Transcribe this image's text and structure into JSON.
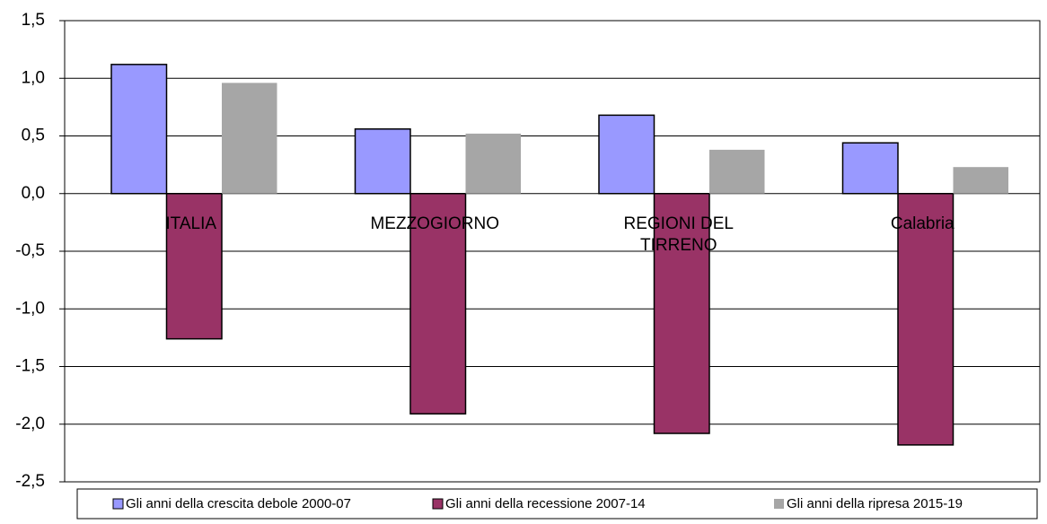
{
  "chart_data": {
    "type": "bar",
    "categories": [
      "ITALIA",
      "MEZZOGIORNO",
      "REGIONI DEL TIRRENO",
      "Calabria"
    ],
    "series": [
      {
        "name": "Gli anni della crescita debole 2000-07",
        "color": "#9999ff",
        "values": [
          1.12,
          0.56,
          0.68,
          0.44
        ]
      },
      {
        "name": "Gli anni della recessione 2007-14",
        "color": "#993366",
        "values": [
          -1.26,
          -1.91,
          -2.08,
          -2.18
        ]
      },
      {
        "name": "Gli anni della ripresa 2015-19",
        "color": "#a6a6a6",
        "values": [
          0.96,
          0.52,
          0.38,
          0.23
        ]
      }
    ],
    "ylim": [
      -2.5,
      1.5
    ],
    "yticks": [
      {
        "value": -2.5,
        "label": "-2,5"
      },
      {
        "value": -2.0,
        "label": "-2,0"
      },
      {
        "value": -1.5,
        "label": "-1,5"
      },
      {
        "value": -1.0,
        "label": "-1,0"
      },
      {
        "value": -0.5,
        "label": "-0,5"
      },
      {
        "value": 0,
        "label": "0,0"
      },
      {
        "value": 0.5,
        "label": "0,5"
      },
      {
        "value": 1.0,
        "label": "1,0"
      },
      {
        "value": 1.5,
        "label": "1,5"
      }
    ],
    "grid": true,
    "legend": "bottom"
  }
}
